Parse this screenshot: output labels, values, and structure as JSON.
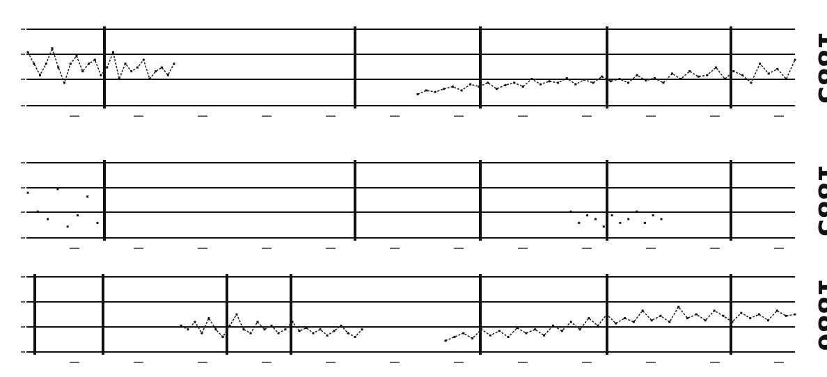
{
  "chart_data": [
    {
      "type": "line",
      "panel": "top",
      "year_label": "1885",
      "title": "",
      "xlabel": "",
      "ylabel": "",
      "grid": true,
      "series": [
        {
          "values": [
            0.7,
            0.55,
            0.4,
            0.55,
            0.75,
            0.5,
            0.3,
            0.55,
            0.65,
            0.45,
            0.55,
            0.6,
            0.4,
            0.5,
            0.7,
            0.35,
            0.55,
            0.45,
            0.5,
            0.6,
            0.35,
            0.45,
            0.5,
            0.4,
            0.55
          ]
        },
        {
          "values": [
            0.15,
            0.2,
            0.18,
            0.22,
            0.25,
            0.2,
            0.28,
            0.25,
            0.3,
            0.22,
            0.27,
            0.3,
            0.25,
            0.35,
            0.28,
            0.32,
            0.3,
            0.36,
            0.28,
            0.34,
            0.3,
            0.38,
            0.32,
            0.35,
            0.3,
            0.4,
            0.33,
            0.36,
            0.3,
            0.42,
            0.35,
            0.45,
            0.38,
            0.4,
            0.5,
            0.35,
            0.45,
            0.4,
            0.3,
            0.55,
            0.42,
            0.48,
            0.35,
            0.6
          ]
        }
      ]
    },
    {
      "type": "scatter",
      "panel": "middle",
      "year_label": "1885",
      "title": "",
      "xlabel": "",
      "ylabel": "",
      "grid": true,
      "series": [
        {
          "values": [
            0.6,
            0.35,
            0.25,
            0.65,
            0.15,
            0.3,
            0.55,
            0.2
          ]
        },
        {
          "values": [
            0.35,
            0.2,
            0.3,
            0.25,
            0.15,
            0.3,
            0.2,
            0.25,
            0.35,
            0.2,
            0.3,
            0.25
          ]
        }
      ]
    },
    {
      "type": "line",
      "panel": "bottom",
      "year_label": "1886",
      "title": "",
      "xlabel": "",
      "ylabel": "",
      "grid": true,
      "series": [
        {
          "values": [
            0.35,
            0.3,
            0.4,
            0.25,
            0.45,
            0.3,
            0.2,
            0.35,
            0.5,
            0.3,
            0.25,
            0.4,
            0.3,
            0.35,
            0.25,
            0.3,
            0.4,
            0.28,
            0.32,
            0.25,
            0.3,
            0.22,
            0.28,
            0.35,
            0.25,
            0.2,
            0.3
          ]
        },
        {
          "values": [
            0.15,
            0.2,
            0.25,
            0.18,
            0.3,
            0.22,
            0.28,
            0.2,
            0.32,
            0.25,
            0.3,
            0.22,
            0.35,
            0.28,
            0.4,
            0.3,
            0.45,
            0.35,
            0.5,
            0.38,
            0.45,
            0.4,
            0.55,
            0.42,
            0.48,
            0.4,
            0.6,
            0.45,
            0.5,
            0.42,
            0.55,
            0.48,
            0.4,
            0.52,
            0.45,
            0.5,
            0.42,
            0.55,
            0.48,
            0.5
          ]
        }
      ]
    }
  ]
}
